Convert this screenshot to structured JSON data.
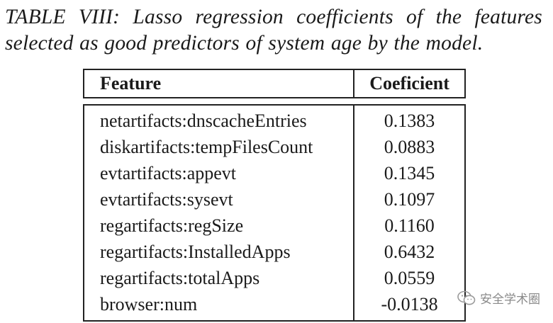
{
  "caption": "TABLE VIII: Lasso regression coefficients of the features selected as good predictors of system age by the model.",
  "table": {
    "headers": [
      "Feature",
      "Coeficient"
    ],
    "rows": [
      [
        "netartifacts:dnscacheEntries",
        "0.1383"
      ],
      [
        "diskartifacts:tempFilesCount",
        "0.0883"
      ],
      [
        "evtartifacts:appevt",
        "0.1345"
      ],
      [
        "evtartifacts:sysevt",
        "0.1097"
      ],
      [
        "regartifacts:regSize",
        "0.1160"
      ],
      [
        "regartifacts:InstalledApps",
        "0.6432"
      ],
      [
        "regartifacts:totalApps",
        "0.0559"
      ],
      [
        "browser:num",
        "-0.0138"
      ]
    ]
  },
  "watermark": {
    "text": "安全学术圈",
    "icon": "wechat-icon"
  },
  "colors": {
    "text": "#1a1a1a",
    "border": "#222222",
    "watermark": "#8a8a8a"
  }
}
